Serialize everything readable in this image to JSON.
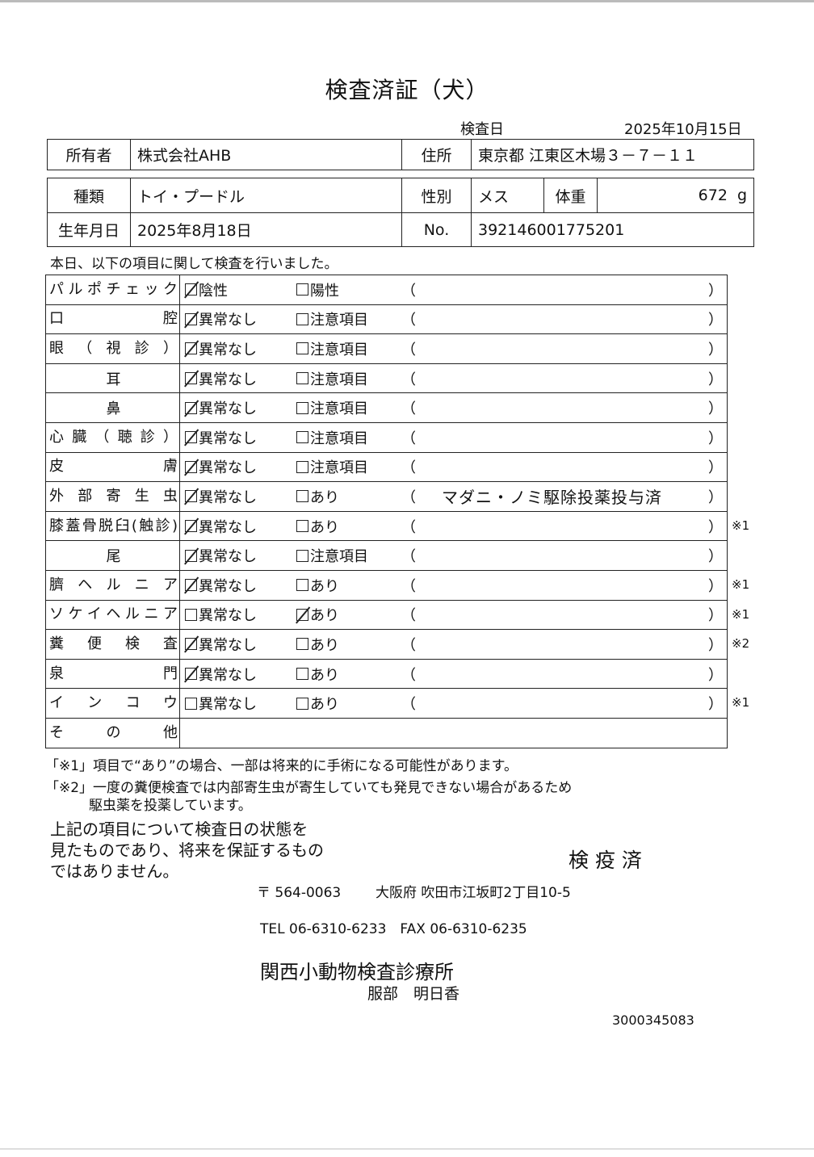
{
  "title": "検査済証（犬）",
  "exam_date_label": "検査日",
  "exam_date": "2025年10月15日",
  "owner": {
    "label": "所有者",
    "value": "株式会社AHB"
  },
  "address": {
    "label": "住所",
    "value": "東京都 江東区木場３－７－１１"
  },
  "breed": {
    "label": "種類",
    "value": "トイ・プードル"
  },
  "sex": {
    "label": "性別",
    "value": "メス"
  },
  "weight": {
    "label": "体重",
    "value": "672",
    "unit": "g"
  },
  "birth": {
    "label": "生年月日",
    "value": "2025年8月18日"
  },
  "number": {
    "label": "No.",
    "value": "392146001775201"
  },
  "intro": "本日、以下の項目に関して検査を行いました。",
  "rows": [
    {
      "label": "パルポチェック",
      "opt1": "陰性",
      "opt2": "陽性",
      "checked": 1,
      "comment": "",
      "note": ""
    },
    {
      "label": "口　　　　腔",
      "opt1": "異常なし",
      "opt2": "注意項目",
      "checked": 1,
      "comment": "",
      "note": ""
    },
    {
      "label": "眼（視診）",
      "opt1": "異常なし",
      "opt2": "注意項目",
      "checked": 1,
      "comment": "",
      "note": ""
    },
    {
      "label": "耳",
      "opt1": "異常なし",
      "opt2": "注意項目",
      "checked": 1,
      "comment": "",
      "note": "",
      "center": true
    },
    {
      "label": "鼻",
      "opt1": "異常なし",
      "opt2": "注意項目",
      "checked": 1,
      "comment": "",
      "note": "",
      "center": true
    },
    {
      "label": "心臓（聴診）",
      "opt1": "異常なし",
      "opt2": "注意項目",
      "checked": 1,
      "comment": "",
      "note": ""
    },
    {
      "label": "皮　　　　膚",
      "opt1": "異常なし",
      "opt2": "注意項目",
      "checked": 1,
      "comment": "",
      "note": ""
    },
    {
      "label": "外部寄生虫",
      "opt1": "異常なし",
      "opt2": "あり",
      "checked": 1,
      "comment": "マダニ・ノミ駆除投薬投与済",
      "note": ""
    },
    {
      "label": "膝蓋骨脱臼(触診)",
      "opt1": "異常なし",
      "opt2": "あり",
      "checked": 1,
      "comment": "",
      "note": "※1"
    },
    {
      "label": "尾",
      "opt1": "異常なし",
      "opt2": "注意項目",
      "checked": 1,
      "comment": "",
      "note": "",
      "center": true
    },
    {
      "label": "臍ヘルニア",
      "opt1": "異常なし",
      "opt2": "あり",
      "checked": 1,
      "comment": "",
      "note": "※1"
    },
    {
      "label": "ソケイヘルニア",
      "opt1": "異常なし",
      "opt2": "あり",
      "checked": 2,
      "comment": "",
      "note": "※1"
    },
    {
      "label": "糞便検査",
      "opt1": "異常なし",
      "opt2": "あり",
      "checked": 1,
      "comment": "",
      "note": "※2"
    },
    {
      "label": "泉　　　　門",
      "opt1": "異常なし",
      "opt2": "あり",
      "checked": 1,
      "comment": "",
      "note": ""
    },
    {
      "label": "インコウ",
      "opt1": "異常なし",
      "opt2": "あり",
      "checked": 0,
      "comment": "",
      "note": "※1"
    },
    {
      "label": "その他",
      "opt1": "",
      "opt2": "",
      "checked": 0,
      "comment": "",
      "note": "",
      "other": true
    }
  ],
  "paren_open": "（",
  "paren_close": "）",
  "footnote1": "「※1」項目で“あり”の場合、一部は将来的に手術になる可能性があります。",
  "footnote2a": "「※2」一度の糞便検査では内部寄生虫が寄生していても発見できない場合があるため",
  "footnote2b": "駆虫薬を投薬しています。",
  "disclaimer": [
    "上記の項目について検査日の状態を",
    "見たものであり、将来を保証するもの",
    "ではありません。"
  ],
  "stamp": "検 疫 済",
  "postal": "〒 564-0063",
  "clinic_address": "大阪府 吹田市江坂町2丁目10-5",
  "phone": "TEL 06-6310-6233　FAX 06-6310-6235",
  "clinic_name": "関西小動物検査診療所",
  "doctor": "服部　明日香",
  "doc_id": "3000345083"
}
